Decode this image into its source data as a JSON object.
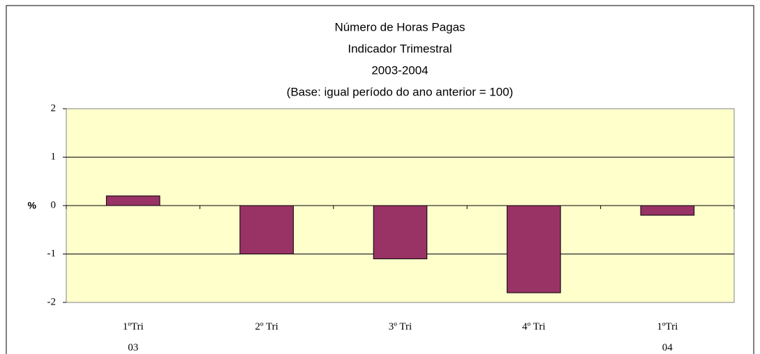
{
  "chart_data": {
    "type": "bar",
    "title": [
      "Número de Horas Pagas",
      "Indicador Trimestral",
      "2003-2004",
      "(Base: igual período do ano anterior = 100)"
    ],
    "y_label": "%",
    "categories": [
      "1ºTri\n03",
      "2º Tri",
      "3º Tri",
      "4º Tri",
      "1ºTri\n04"
    ],
    "values": [
      0.2,
      -1.0,
      -1.1,
      -1.8,
      -0.2
    ],
    "color": "#993366",
    "plot_color": "#ffffcc",
    "ylim": [
      -2,
      2
    ],
    "yticks": [
      -2,
      -1,
      0,
      1,
      2
    ],
    "grid": true
  }
}
